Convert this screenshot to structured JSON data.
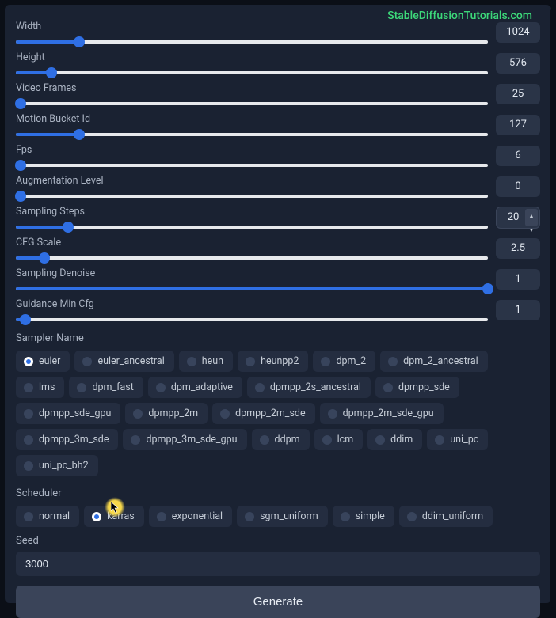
{
  "watermark": "StableDiffusionTutorials.com",
  "colors": {
    "accent": "#2f6fe4",
    "track": "#e7e9ec",
    "chip_bg": "#242d40",
    "panel_bg": "#1a2232",
    "page_bg": "#0b0f17",
    "watermark": "#3dd97a"
  },
  "sliders": [
    {
      "key": "width",
      "label": "Width",
      "value": "1024",
      "pct": 13.5,
      "stepper": false
    },
    {
      "key": "height",
      "label": "Height",
      "value": "576",
      "pct": 7.5,
      "stepper": false
    },
    {
      "key": "video_frames",
      "label": "Video Frames",
      "value": "25",
      "pct": 1,
      "stepper": false
    },
    {
      "key": "motion_bucket_id",
      "label": "Motion Bucket Id",
      "value": "127",
      "pct": 13.5,
      "stepper": false
    },
    {
      "key": "fps",
      "label": "Fps",
      "value": "6",
      "pct": 1,
      "stepper": false
    },
    {
      "key": "augmentation",
      "label": "Augmentation Level",
      "value": "0",
      "pct": 1,
      "stepper": false
    },
    {
      "key": "sampling_steps",
      "label": "Sampling Steps",
      "value": "20",
      "pct": 11,
      "stepper": true
    },
    {
      "key": "cfg_scale",
      "label": "CFG Scale",
      "value": "2.5",
      "pct": 6,
      "stepper": false
    },
    {
      "key": "sampling_denoise",
      "label": "Sampling Denoise",
      "value": "1",
      "pct": 100,
      "stepper": false
    },
    {
      "key": "guidance_min_cfg",
      "label": "Guidance Min Cfg",
      "value": "1",
      "pct": 2,
      "stepper": false
    }
  ],
  "sampler": {
    "label": "Sampler Name",
    "selected": "euler",
    "options": [
      "euler",
      "euler_ancestral",
      "heun",
      "heunpp2",
      "dpm_2",
      "dpm_2_ancestral",
      "lms",
      "dpm_fast",
      "dpm_adaptive",
      "dpmpp_2s_ancestral",
      "dpmpp_sde",
      "dpmpp_sde_gpu",
      "dpmpp_2m",
      "dpmpp_2m_sde",
      "dpmpp_2m_sde_gpu",
      "dpmpp_3m_sde",
      "dpmpp_3m_sde_gpu",
      "ddpm",
      "lcm",
      "ddim",
      "uni_pc",
      "uni_pc_bh2"
    ]
  },
  "scheduler": {
    "label": "Scheduler",
    "selected": "karras",
    "options": [
      "normal",
      "karras",
      "exponential",
      "sgm_uniform",
      "simple",
      "ddim_uniform"
    ]
  },
  "seed": {
    "label": "Seed",
    "value": "3000"
  },
  "generate_label": "Generate"
}
